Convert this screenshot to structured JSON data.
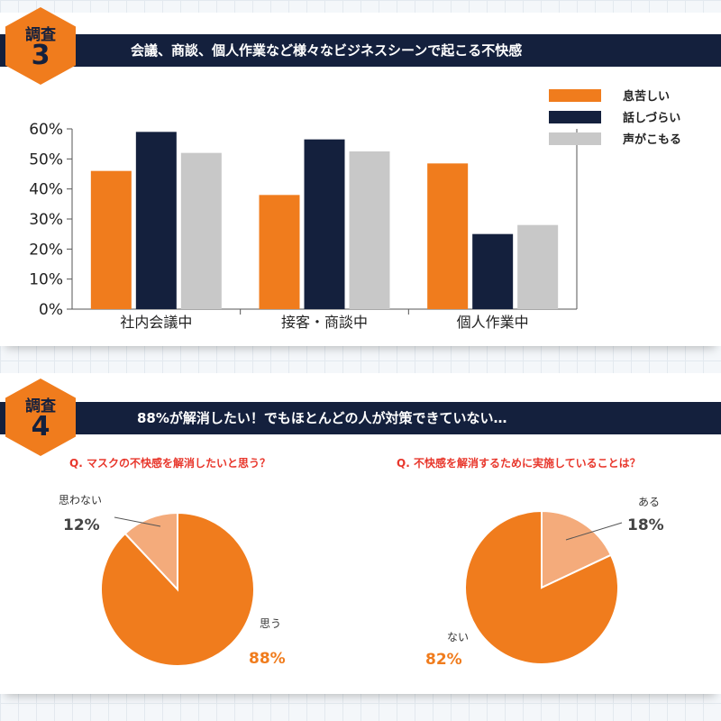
{
  "survey3": {
    "badge_top": "調査",
    "badge_num": "3",
    "title": "会議、商談、個人作業など様々なビジネスシーンで起こる不快感"
  },
  "survey4": {
    "badge_top": "調査",
    "badge_num": "4",
    "title": "88%が解消したい！でもほとんどの人が対策できていない…"
  },
  "colors": {
    "orange": "#f07c1d",
    "navy": "#14203d",
    "gray": "#c8c8c8",
    "light_orange": "#f4ab7b",
    "question_red": "#e8372c"
  },
  "chart_data": [
    {
      "type": "bar",
      "title": "",
      "categories": [
        "社内会議中",
        "接客・商談中",
        "個人作業中"
      ],
      "series": [
        {
          "name": "息苦しい",
          "color": "#f07c1d",
          "values": [
            46,
            38,
            48.5
          ]
        },
        {
          "name": "話しづらい",
          "color": "#14203d",
          "values": [
            59,
            56.5,
            25
          ]
        },
        {
          "name": "声がこもる",
          "color": "#c8c8c8",
          "values": [
            52,
            52.5,
            28
          ]
        }
      ],
      "yticks": [
        "0%",
        "10%",
        "20%",
        "30%",
        "40%",
        "50%",
        "60%"
      ],
      "ylim": [
        0,
        60
      ],
      "legend": "top-right",
      "grid": false
    },
    {
      "type": "pie",
      "question": "Q. マスクの不快感を解消したいと思う？",
      "slices": [
        {
          "label": "思う",
          "value": 88,
          "value_text": "88%",
          "color": "#f07c1d"
        },
        {
          "label": "思わない",
          "value": 12,
          "value_text": "12%",
          "color": "#f4ab7b"
        }
      ]
    },
    {
      "type": "pie",
      "question": "Q. 不快感を解消するために実施していることは？",
      "slices": [
        {
          "label": "ない",
          "value": 82,
          "value_text": "82%",
          "color": "#f07c1d"
        },
        {
          "label": "ある",
          "value": 18,
          "value_text": "18%",
          "color": "#f4ab7b"
        }
      ]
    }
  ]
}
